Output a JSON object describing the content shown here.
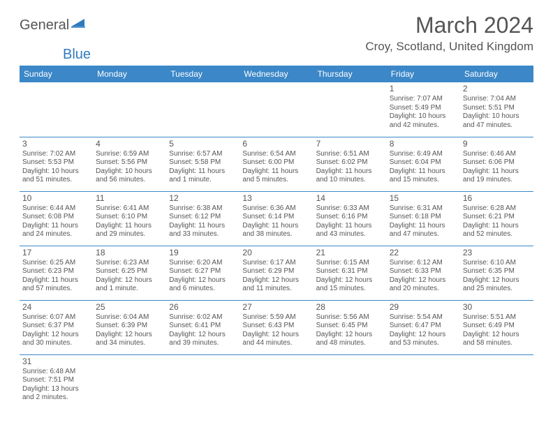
{
  "logo": {
    "text1": "General",
    "text2": "Blue"
  },
  "title": "March 2024",
  "location": "Croy, Scotland, United Kingdom",
  "colors": {
    "header_bg": "#3b87c8",
    "header_fg": "#ffffff",
    "border": "#3b87c8",
    "text": "#555555",
    "accent": "#2f7bbf"
  },
  "weekdays": [
    "Sunday",
    "Monday",
    "Tuesday",
    "Wednesday",
    "Thursday",
    "Friday",
    "Saturday"
  ],
  "weeks": [
    [
      null,
      null,
      null,
      null,
      null,
      {
        "n": "1",
        "sunrise": "7:07 AM",
        "sunset": "5:49 PM",
        "day": "10 hours and 42 minutes."
      },
      {
        "n": "2",
        "sunrise": "7:04 AM",
        "sunset": "5:51 PM",
        "day": "10 hours and 47 minutes."
      }
    ],
    [
      {
        "n": "3",
        "sunrise": "7:02 AM",
        "sunset": "5:53 PM",
        "day": "10 hours and 51 minutes."
      },
      {
        "n": "4",
        "sunrise": "6:59 AM",
        "sunset": "5:56 PM",
        "day": "10 hours and 56 minutes."
      },
      {
        "n": "5",
        "sunrise": "6:57 AM",
        "sunset": "5:58 PM",
        "day": "11 hours and 1 minute."
      },
      {
        "n": "6",
        "sunrise": "6:54 AM",
        "sunset": "6:00 PM",
        "day": "11 hours and 5 minutes."
      },
      {
        "n": "7",
        "sunrise": "6:51 AM",
        "sunset": "6:02 PM",
        "day": "11 hours and 10 minutes."
      },
      {
        "n": "8",
        "sunrise": "6:49 AM",
        "sunset": "6:04 PM",
        "day": "11 hours and 15 minutes."
      },
      {
        "n": "9",
        "sunrise": "6:46 AM",
        "sunset": "6:06 PM",
        "day": "11 hours and 19 minutes."
      }
    ],
    [
      {
        "n": "10",
        "sunrise": "6:44 AM",
        "sunset": "6:08 PM",
        "day": "11 hours and 24 minutes."
      },
      {
        "n": "11",
        "sunrise": "6:41 AM",
        "sunset": "6:10 PM",
        "day": "11 hours and 29 minutes."
      },
      {
        "n": "12",
        "sunrise": "6:38 AM",
        "sunset": "6:12 PM",
        "day": "11 hours and 33 minutes."
      },
      {
        "n": "13",
        "sunrise": "6:36 AM",
        "sunset": "6:14 PM",
        "day": "11 hours and 38 minutes."
      },
      {
        "n": "14",
        "sunrise": "6:33 AM",
        "sunset": "6:16 PM",
        "day": "11 hours and 43 minutes."
      },
      {
        "n": "15",
        "sunrise": "6:31 AM",
        "sunset": "6:18 PM",
        "day": "11 hours and 47 minutes."
      },
      {
        "n": "16",
        "sunrise": "6:28 AM",
        "sunset": "6:21 PM",
        "day": "11 hours and 52 minutes."
      }
    ],
    [
      {
        "n": "17",
        "sunrise": "6:25 AM",
        "sunset": "6:23 PM",
        "day": "11 hours and 57 minutes."
      },
      {
        "n": "18",
        "sunrise": "6:23 AM",
        "sunset": "6:25 PM",
        "day": "12 hours and 1 minute."
      },
      {
        "n": "19",
        "sunrise": "6:20 AM",
        "sunset": "6:27 PM",
        "day": "12 hours and 6 minutes."
      },
      {
        "n": "20",
        "sunrise": "6:17 AM",
        "sunset": "6:29 PM",
        "day": "12 hours and 11 minutes."
      },
      {
        "n": "21",
        "sunrise": "6:15 AM",
        "sunset": "6:31 PM",
        "day": "12 hours and 15 minutes."
      },
      {
        "n": "22",
        "sunrise": "6:12 AM",
        "sunset": "6:33 PM",
        "day": "12 hours and 20 minutes."
      },
      {
        "n": "23",
        "sunrise": "6:10 AM",
        "sunset": "6:35 PM",
        "day": "12 hours and 25 minutes."
      }
    ],
    [
      {
        "n": "24",
        "sunrise": "6:07 AM",
        "sunset": "6:37 PM",
        "day": "12 hours and 30 minutes."
      },
      {
        "n": "25",
        "sunrise": "6:04 AM",
        "sunset": "6:39 PM",
        "day": "12 hours and 34 minutes."
      },
      {
        "n": "26",
        "sunrise": "6:02 AM",
        "sunset": "6:41 PM",
        "day": "12 hours and 39 minutes."
      },
      {
        "n": "27",
        "sunrise": "5:59 AM",
        "sunset": "6:43 PM",
        "day": "12 hours and 44 minutes."
      },
      {
        "n": "28",
        "sunrise": "5:56 AM",
        "sunset": "6:45 PM",
        "day": "12 hours and 48 minutes."
      },
      {
        "n": "29",
        "sunrise": "5:54 AM",
        "sunset": "6:47 PM",
        "day": "12 hours and 53 minutes."
      },
      {
        "n": "30",
        "sunrise": "5:51 AM",
        "sunset": "6:49 PM",
        "day": "12 hours and 58 minutes."
      }
    ],
    [
      {
        "n": "31",
        "sunrise": "6:48 AM",
        "sunset": "7:51 PM",
        "day": "13 hours and 2 minutes."
      },
      null,
      null,
      null,
      null,
      null,
      null
    ]
  ],
  "labels": {
    "sunrise": "Sunrise:",
    "sunset": "Sunset:",
    "daylight": "Daylight:"
  }
}
